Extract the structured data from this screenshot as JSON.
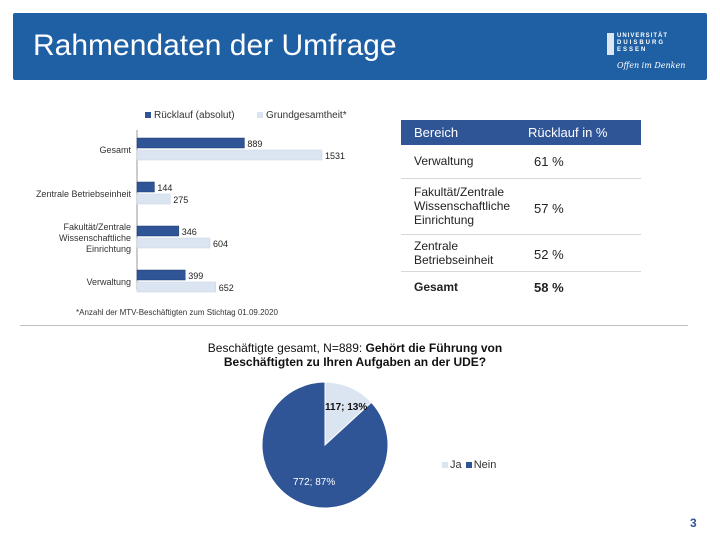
{
  "header": {
    "title": "Rahmendaten der Umfrage",
    "logo_line1": "UNIVERSITÄT",
    "logo_line2": "DUISBURG",
    "logo_line3": "ESSEN",
    "logo_slogan": "Offen im Denken"
  },
  "colors": {
    "header": "#1f5fa3",
    "ruecklauf": "#2f5597",
    "grundgesamtheit": "#dbe5f1",
    "table_header": "#2f5597"
  },
  "chart_data": [
    {
      "type": "bar",
      "orientation": "horizontal",
      "categories": [
        "Gesamt",
        "Zentrale Betriebseinheit",
        "Fakultät/Zentrale Wissenschaftliche Einrichtung",
        "Verwaltung"
      ],
      "series": [
        {
          "name": "Rücklauf (absolut)",
          "values": [
            889,
            144,
            346,
            399
          ]
        },
        {
          "name": "Grundgesamtheit*",
          "values": [
            1531,
            275,
            604,
            652
          ]
        }
      ],
      "xlim": [
        0,
        1531
      ],
      "legend": "top",
      "footnote": "*Anzahl der MTV-Beschäftigten zum Stichtag 01.09.2020"
    },
    {
      "type": "table",
      "columns": [
        "Bereich",
        "Rücklauf  in %"
      ],
      "rows": [
        [
          "Verwaltung",
          "61  %"
        ],
        [
          "Fakultät/Zentrale Wissenschaftliche Einrichtung",
          "57  %"
        ],
        [
          "Zentrale Betriebseinheit",
          "52  %"
        ],
        [
          "Gesamt",
          "58  %"
        ]
      ]
    },
    {
      "type": "pie",
      "title_line1": "Beschäftigte gesamt, N=889: ",
      "title_bold": "Gehört die Führung von Beschäftigten zu Ihren Aufgaben an der UDE?",
      "slices": [
        {
          "name": "Ja",
          "value": 117,
          "percent": 13,
          "label": "117; 13%"
        },
        {
          "name": "Nein",
          "value": 772,
          "percent": 87,
          "label": "772; 87%"
        }
      ],
      "legend": "bottom-right"
    }
  ],
  "page_number": "3"
}
